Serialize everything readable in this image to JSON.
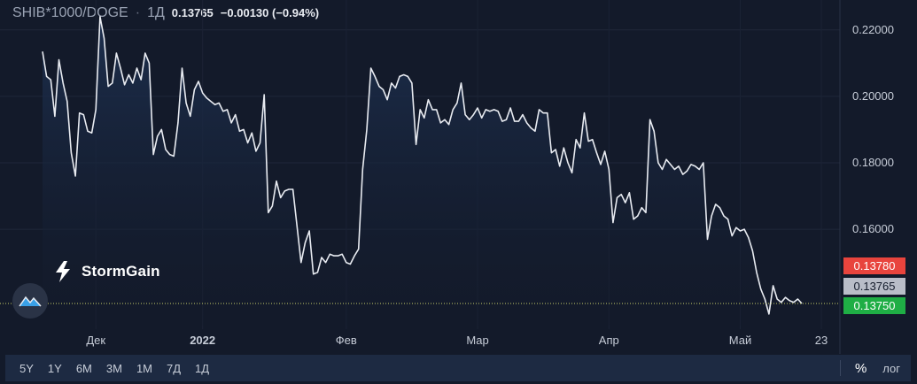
{
  "header": {
    "symbol": "SHIB*1000/DOGE",
    "separator": "·",
    "interval": "1Д",
    "price": "0.13765",
    "change": "−0.00130 (−0.94%)"
  },
  "logo": {
    "text": "StormGain"
  },
  "price_tags": {
    "high": "0.13780",
    "last": "0.13765",
    "low": "0.13750"
  },
  "toolbar": {
    "ranges": [
      "5Y",
      "1Y",
      "6M",
      "3M",
      "1M",
      "7Д",
      "1Д"
    ],
    "percent": "%",
    "log": "лог"
  },
  "colors": {
    "line": "#e8ebf1",
    "area": "#1a2c48",
    "high_tag": "#e8443d",
    "low_tag": "#1fae45",
    "last_tag": "#b9bdc8"
  },
  "chart_data": {
    "type": "area",
    "ylim": [
      0.131,
      0.229
    ],
    "y_ticks": [
      "0.22000",
      "0.20000",
      "0.18000",
      "0.16000"
    ],
    "y_tick_values": [
      0.22,
      0.2,
      0.18,
      0.16
    ],
    "x_ticks": [
      "Дек",
      "2022",
      "Фев",
      "Мар",
      "Апр",
      "Май",
      "23"
    ],
    "last_price": 0.13765,
    "series": [
      {
        "values": [
          0.2135,
          0.206,
          0.205,
          0.194,
          0.211,
          0.204,
          0.1985,
          0.183,
          0.176,
          0.195,
          0.1945,
          0.1895,
          0.189,
          0.196,
          0.224,
          0.2175,
          0.203,
          0.204,
          0.213,
          0.2085,
          0.2035,
          0.2065,
          0.204,
          0.2085,
          0.205,
          0.213,
          0.21,
          0.1825,
          0.188,
          0.19,
          0.184,
          0.1825,
          0.182,
          0.192,
          0.2085,
          0.198,
          0.194,
          0.202,
          0.2045,
          0.201,
          0.1995,
          0.1985,
          0.1975,
          0.198,
          0.1955,
          0.196,
          0.192,
          0.1945,
          0.1895,
          0.19,
          0.186,
          0.189,
          0.1835,
          0.186,
          0.2005,
          0.165,
          0.167,
          0.1745,
          0.1695,
          0.1715,
          0.172,
          0.172,
          0.161,
          0.15,
          0.156,
          0.1595,
          0.1465,
          0.147,
          0.1515,
          0.15,
          0.1525,
          0.152,
          0.152,
          0.1525,
          0.15,
          0.1495,
          0.152,
          0.154,
          0.178,
          0.19,
          0.2085,
          0.206,
          0.203,
          0.202,
          0.199,
          0.204,
          0.2025,
          0.206,
          0.2065,
          0.206,
          0.204,
          0.1855,
          0.196,
          0.1935,
          0.199,
          0.196,
          0.196,
          0.192,
          0.193,
          0.1915,
          0.196,
          0.198,
          0.204,
          0.1945,
          0.193,
          0.1945,
          0.1965,
          0.1935,
          0.196,
          0.1955,
          0.196,
          0.1955,
          0.1925,
          0.193,
          0.1965,
          0.1925,
          0.1925,
          0.1945,
          0.192,
          0.1905,
          0.1895,
          0.196,
          0.195,
          0.195,
          0.183,
          0.184,
          0.179,
          0.1845,
          0.18,
          0.177,
          0.187,
          0.1845,
          0.195,
          0.1865,
          0.187,
          0.183,
          0.1795,
          0.1835,
          0.178,
          0.162,
          0.1695,
          0.1705,
          0.168,
          0.171,
          0.163,
          0.164,
          0.1665,
          0.165,
          0.193,
          0.1895,
          0.18,
          0.178,
          0.181,
          0.1795,
          0.178,
          0.179,
          0.1765,
          0.1775,
          0.1795,
          0.179,
          0.178,
          0.18,
          0.157,
          0.164,
          0.1675,
          0.1665,
          0.164,
          0.163,
          0.158,
          0.1605,
          0.1595,
          0.16,
          0.1575,
          0.1535,
          0.147,
          0.142,
          0.139,
          0.1345,
          0.143,
          0.139,
          0.138,
          0.1395,
          0.1385,
          0.138,
          0.139,
          0.13765
        ]
      }
    ]
  }
}
